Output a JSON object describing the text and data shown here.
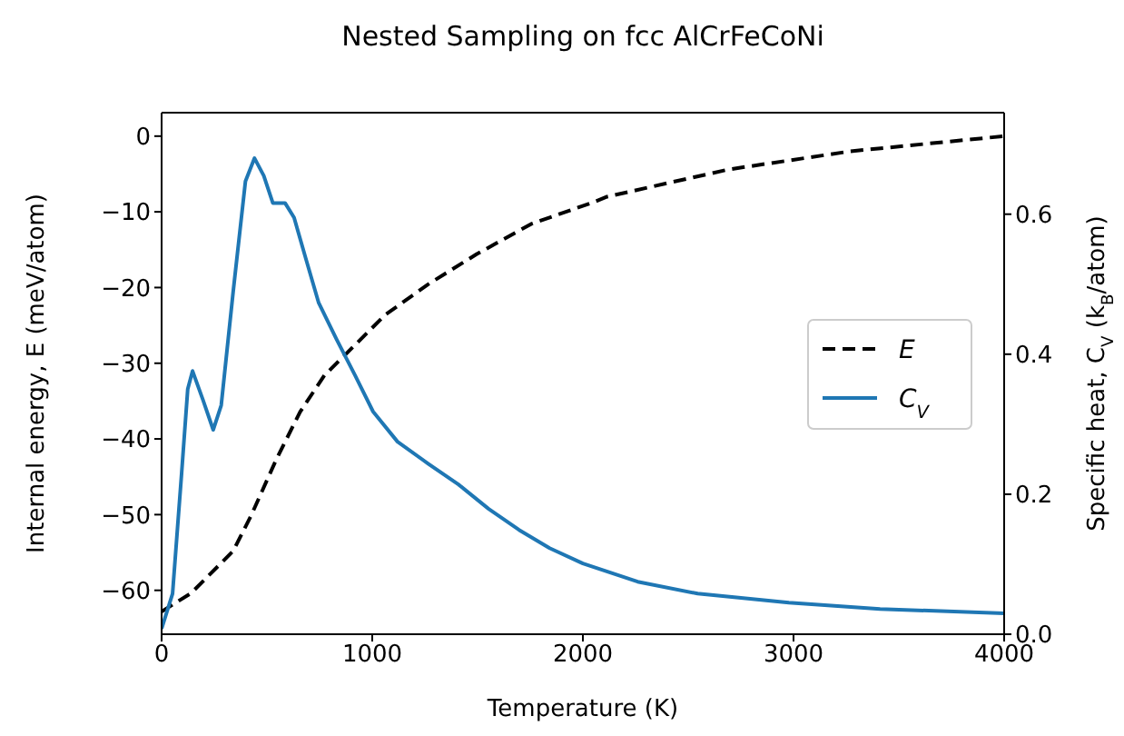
{
  "chart_data": {
    "type": "line",
    "title": "Nested Sampling on fcc AlCrFeCoNi",
    "xlabel": "Temperature (K)",
    "ylabel": "Internal energy, E (meV/atom)",
    "y2label": "Specific heat, C$_{V}$ (k$_{B}$/atom)",
    "xlim": [
      0,
      4000
    ],
    "xticks": [
      0,
      1000,
      2000,
      3000,
      4000
    ],
    "ylim": [
      -65.8,
      3.1
    ],
    "yticks": [
      -60,
      -50,
      -40,
      -30,
      -20,
      -10,
      0
    ],
    "y2lim": [
      0,
      0.745
    ],
    "y2ticks": [
      {
        "value": 0,
        "label": "0.0"
      },
      {
        "value": 0.2,
        "label": "0.2"
      },
      {
        "value": 0.4,
        "label": "0.4"
      },
      {
        "value": 0.6,
        "label": "0.6"
      }
    ],
    "grid": false,
    "legend": "right",
    "marker": "none",
    "series": [
      {
        "name": "E",
        "color": "#000000",
        "line_style": "dashed",
        "x": [
          0,
          139,
          340,
          427,
          543,
          658,
          773,
          889,
          1062,
          1264,
          1495,
          1755,
          2043,
          2115,
          2692,
          3270,
          4000
        ],
        "values": [
          -62.8,
          -60.4,
          -54.8,
          -50,
          -42.8,
          -36.4,
          -31.6,
          -28.4,
          -23.6,
          -19.6,
          -15.6,
          -11.6,
          -8.8,
          -8.0,
          -4.4,
          -2.0,
          0
        ]
      },
      {
        "name": "C$_{V}$",
        "color": "#1f77b4",
        "line_style": "solid",
        "axis": "y2",
        "x": [
          0,
          52,
          95,
          124,
          147,
          196,
          245,
          283,
          340,
          398,
          441,
          485,
          528,
          586,
          629,
          687,
          745,
          831,
          918,
          1004,
          1120,
          1264,
          1409,
          1553,
          1697,
          1842,
          2000,
          2260,
          2545,
          2978,
          3411,
          4000
        ],
        "values": [
          0.008,
          0.058,
          0.23,
          0.35,
          0.376,
          0.335,
          0.292,
          0.327,
          0.49,
          0.647,
          0.68,
          0.655,
          0.616,
          0.616,
          0.595,
          0.534,
          0.474,
          0.421,
          0.37,
          0.318,
          0.275,
          0.244,
          0.214,
          0.179,
          0.149,
          0.123,
          0.101,
          0.075,
          0.058,
          0.045,
          0.036,
          0.03
        ]
      }
    ]
  }
}
